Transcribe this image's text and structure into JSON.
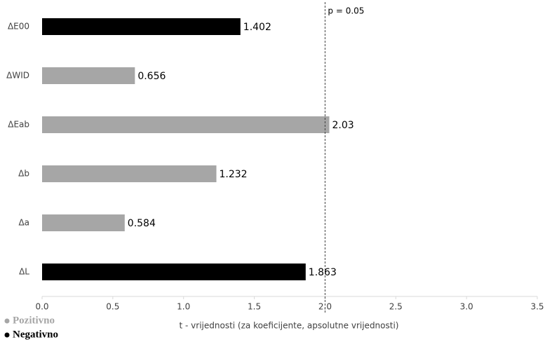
{
  "chart_data": {
    "type": "hbar",
    "categories": [
      "ΔE00",
      "ΔWID",
      "ΔEab",
      "Δb",
      "Δa",
      "ΔL"
    ],
    "series": [
      {
        "name": "Pozitivno",
        "color": "#a6a6a6",
        "values": [
          null,
          0.656,
          2.03,
          1.232,
          0.584,
          null
        ]
      },
      {
        "name": "Negativno",
        "color": "#000000",
        "values": [
          1.402,
          null,
          null,
          null,
          null,
          1.863
        ]
      }
    ],
    "xlabel": "t - vrijednosti (za koeficijente, apsolutne vrijednosti)",
    "xlim": [
      0,
      3.5
    ],
    "xticks": [
      {
        "value": 0,
        "label": "0.0"
      },
      0.5,
      {
        "value": 1,
        "label": "1.0"
      },
      1.5,
      {
        "value": 2,
        "label": "2.0"
      },
      2.5,
      {
        "value": 3,
        "label": "3.0"
      },
      3.5
    ],
    "reference_line": {
      "value": 2,
      "label": "p = 0.05"
    },
    "legend": "bottom-left"
  }
}
